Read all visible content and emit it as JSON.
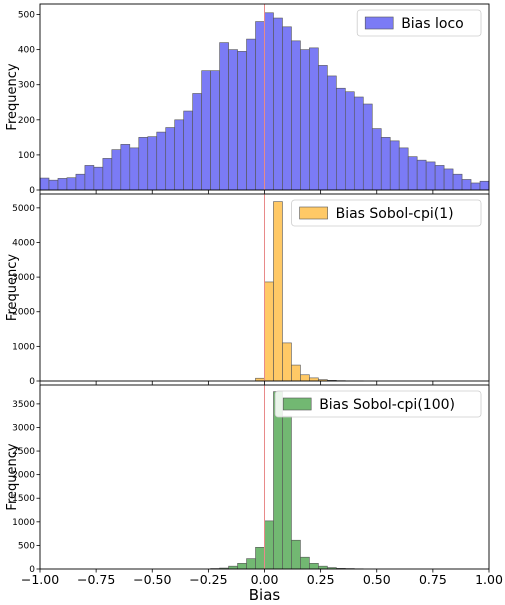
{
  "chart_data": [
    {
      "type": "bar",
      "bins": {
        "start": -1.0,
        "width": 0.04,
        "count": 50
      },
      "xlim": [
        -1.0,
        1.0
      ],
      "ylim": [
        0,
        530
      ],
      "yticks": [
        0,
        100,
        200,
        300,
        400,
        500
      ],
      "ylabel": "Frequency",
      "legend": {
        "label": "Bias loco",
        "position": "top-right"
      },
      "colors": {
        "bar": "#7b7bf5",
        "edge": "#555555",
        "vline": "#e88a8a"
      },
      "vline_x": 0.0,
      "values": [
        34,
        28,
        33,
        35,
        45,
        70,
        65,
        90,
        115,
        130,
        120,
        150,
        152,
        165,
        178,
        200,
        225,
        275,
        340,
        340,
        420,
        400,
        395,
        430,
        480,
        505,
        490,
        465,
        425,
        400,
        405,
        355,
        325,
        290,
        280,
        265,
        245,
        175,
        150,
        140,
        120,
        95,
        85,
        80,
        70,
        60,
        45,
        30,
        20,
        25
      ]
    },
    {
      "type": "bar",
      "bins": {
        "start": -1.0,
        "width": 0.04,
        "count": 50
      },
      "xlim": [
        -1.0,
        1.0
      ],
      "ylim": [
        0,
        5400
      ],
      "yticks": [
        0,
        1000,
        2000,
        3000,
        4000,
        5000
      ],
      "ylabel": "Frequency",
      "legend": {
        "label": "Bias Sobol-cpi(1)",
        "position": "top-right"
      },
      "colors": {
        "bar": "#ffc966",
        "edge": "#555555",
        "vline": "#e88a8a"
      },
      "vline_x": 0.0,
      "values": [
        0,
        0,
        0,
        0,
        0,
        0,
        0,
        0,
        0,
        0,
        0,
        0,
        0,
        0,
        0,
        0,
        0,
        0,
        0,
        0,
        0,
        0,
        0,
        0,
        80,
        2860,
        5180,
        1100,
        460,
        180,
        90,
        40,
        20,
        10,
        5,
        5,
        0,
        0,
        0,
        0,
        0,
        0,
        0,
        0,
        0,
        0,
        0,
        0,
        0,
        0
      ]
    },
    {
      "type": "bar",
      "bins": {
        "start": -1.0,
        "width": 0.04,
        "count": 50
      },
      "xlim": [
        -1.0,
        1.0
      ],
      "ylim": [
        0,
        3900
      ],
      "yticks": [
        0,
        500,
        1000,
        1500,
        2000,
        2500,
        3000,
        3500
      ],
      "xticks": [
        -1.0,
        -0.75,
        -0.5,
        -0.25,
        0.0,
        0.25,
        0.5,
        0.75,
        1.0
      ],
      "xtick_labels": [
        "−1.00",
        "−0.75",
        "−0.50",
        "−0.25",
        "0.00",
        "0.25",
        "0.50",
        "0.75",
        "1.00"
      ],
      "xlabel": "Bias",
      "ylabel": "Frequency",
      "legend": {
        "label": "Bias Sobol-cpi(100)",
        "position": "top-right"
      },
      "colors": {
        "bar": "#72b872",
        "edge": "#555555",
        "vline": "#e88a8a"
      },
      "vline_x": 0.0,
      "values": [
        0,
        0,
        0,
        0,
        0,
        0,
        0,
        0,
        0,
        0,
        0,
        0,
        0,
        0,
        0,
        0,
        0,
        0,
        0,
        10,
        20,
        60,
        120,
        220,
        460,
        1020,
        3760,
        3240,
        610,
        250,
        120,
        60,
        30,
        15,
        10,
        5,
        0,
        0,
        0,
        0,
        0,
        0,
        0,
        0,
        0,
        0,
        0,
        0,
        0,
        0
      ]
    }
  ]
}
